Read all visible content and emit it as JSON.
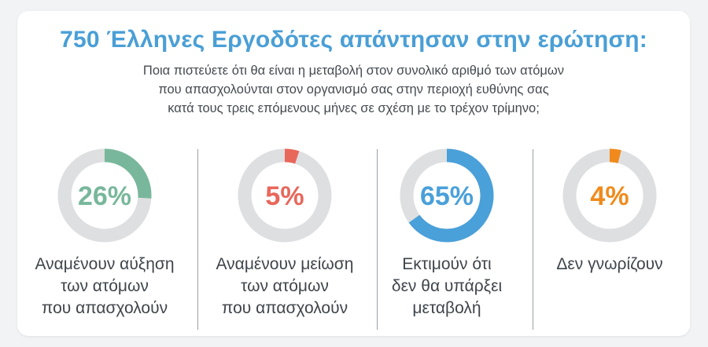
{
  "header": {
    "title": "750 Έλληνες Εργοδότες απάντησαν στην ερώτηση:",
    "question_lines": [
      "Ποια πιστεύετε ότι θα είναι η μεταβολή στον συνολικό αριθμό των ατόμων",
      "που απασχολούνται στον οργανισμό σας στην περιοχή ευθύνης σας",
      "κατά τους τρεις επόμενους μήνες σε σχέση με το τρέχον τρίμηνο;"
    ]
  },
  "chart_data": {
    "type": "pie",
    "title": "750 Έλληνες Εργοδότες απάντησαν στην ερώτηση:",
    "series": [
      {
        "value": 26,
        "display": "26%",
        "label_lines": [
          "Αναμένουν αύξηση",
          "των ατόμων",
          "που απασχολούν"
        ],
        "color": "#78b79b"
      },
      {
        "value": 5,
        "display": "5%",
        "label_lines": [
          "Αναμένουν μείωση",
          "των ατόμων",
          "που απασχολούν"
        ],
        "color": "#e8675b"
      },
      {
        "value": 65,
        "display": "65%",
        "label_lines": [
          "Εκτιμούν ότι",
          "δεν θα υπάρξει",
          "μεταβολή"
        ],
        "color": "#4aa0d9"
      },
      {
        "value": 4,
        "display": "4%",
        "label_lines": [
          "Δεν γνωρίζουν"
        ],
        "color": "#f08a1c"
      }
    ],
    "track_color": "#dedfe1"
  }
}
